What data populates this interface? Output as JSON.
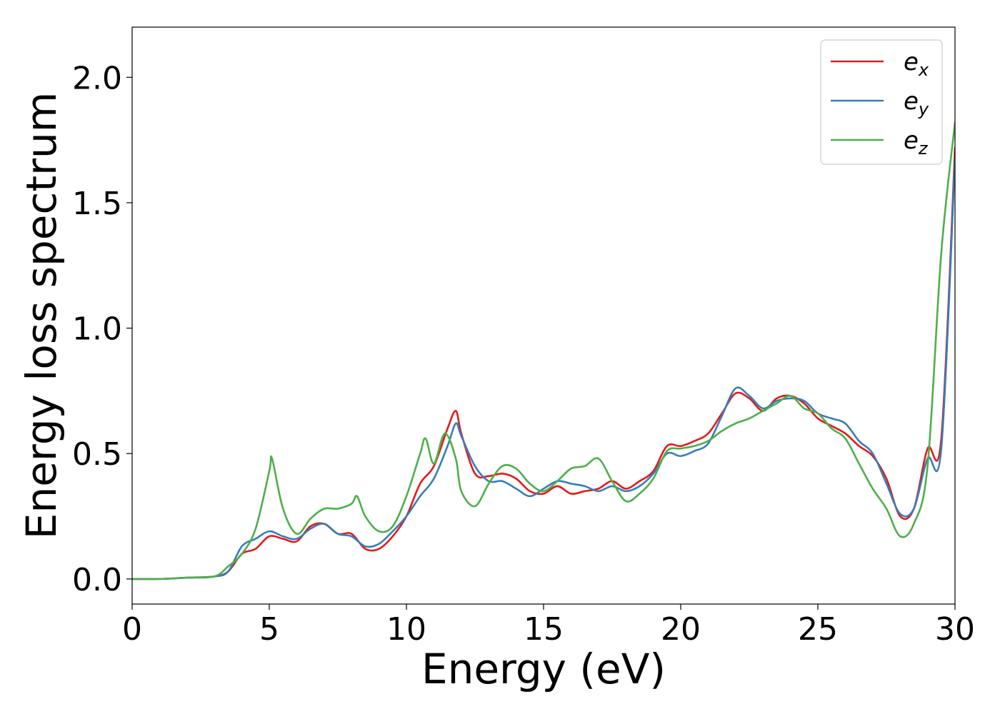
{
  "chart_data": {
    "type": "line",
    "xlabel": "Energy (eV)",
    "ylabel": "Energy loss spectrum",
    "xlim": [
      0,
      30
    ],
    "ylim": [
      -0.1,
      2.2
    ],
    "xticks": [
      "0",
      "5",
      "10",
      "15",
      "20",
      "25",
      "30"
    ],
    "yticks": [
      "0.0",
      "0.5",
      "1.0",
      "1.5",
      "2.0"
    ],
    "grid": false,
    "legend_position": "top-right",
    "series": [
      {
        "name": "e",
        "subscript": "x",
        "color": "#e41a1c",
        "x": [
          0,
          1,
          2,
          3,
          3.5,
          4,
          4.5,
          5,
          5.5,
          6,
          6.5,
          7,
          7.5,
          8,
          8.5,
          9,
          9.5,
          10,
          10.5,
          11,
          11.5,
          11.8,
          12,
          12.5,
          13,
          13.5,
          14,
          14.5,
          15,
          15.5,
          16,
          16.5,
          17,
          17.5,
          18,
          18.5,
          19,
          19.5,
          20,
          20.5,
          21,
          21.5,
          22,
          22.5,
          23,
          23.5,
          24,
          24.5,
          25,
          25.5,
          26,
          26.5,
          27,
          27.5,
          28,
          28.5,
          29,
          29.5,
          30
        ],
        "y": [
          0,
          0,
          0.005,
          0.01,
          0.03,
          0.1,
          0.12,
          0.17,
          0.16,
          0.15,
          0.21,
          0.22,
          0.18,
          0.18,
          0.12,
          0.12,
          0.17,
          0.25,
          0.38,
          0.45,
          0.6,
          0.67,
          0.58,
          0.42,
          0.41,
          0.42,
          0.4,
          0.35,
          0.34,
          0.37,
          0.34,
          0.35,
          0.36,
          0.39,
          0.36,
          0.39,
          0.43,
          0.53,
          0.53,
          0.55,
          0.58,
          0.66,
          0.74,
          0.72,
          0.67,
          0.72,
          0.73,
          0.7,
          0.64,
          0.61,
          0.58,
          0.53,
          0.49,
          0.4,
          0.25,
          0.28,
          0.52,
          0.56,
          1.72
        ]
      },
      {
        "name": "e",
        "subscript": "y",
        "color": "#377eb8",
        "x": [
          0,
          1,
          2,
          3,
          3.5,
          4,
          4.5,
          5,
          5.5,
          6,
          6.5,
          7,
          7.5,
          8,
          8.5,
          9,
          9.5,
          10,
          10.5,
          11,
          11.5,
          11.8,
          12,
          12.5,
          13,
          13.5,
          14,
          14.5,
          15,
          15.5,
          16,
          16.5,
          17,
          17.5,
          18,
          18.5,
          19,
          19.5,
          20,
          20.5,
          21,
          21.5,
          22,
          22.5,
          23,
          23.5,
          24,
          24.5,
          25,
          25.5,
          26,
          26.5,
          27,
          27.5,
          28,
          28.5,
          29,
          29.5,
          30
        ],
        "y": [
          0,
          0,
          0.005,
          0.01,
          0.03,
          0.13,
          0.16,
          0.19,
          0.17,
          0.16,
          0.2,
          0.22,
          0.18,
          0.17,
          0.13,
          0.14,
          0.19,
          0.25,
          0.33,
          0.4,
          0.53,
          0.62,
          0.57,
          0.45,
          0.39,
          0.39,
          0.36,
          0.33,
          0.36,
          0.39,
          0.38,
          0.37,
          0.35,
          0.37,
          0.35,
          0.37,
          0.42,
          0.5,
          0.49,
          0.51,
          0.54,
          0.65,
          0.76,
          0.73,
          0.68,
          0.71,
          0.72,
          0.71,
          0.66,
          0.64,
          0.62,
          0.55,
          0.5,
          0.38,
          0.26,
          0.28,
          0.48,
          0.52,
          1.68
        ]
      },
      {
        "name": "e",
        "subscript": "z",
        "color": "#4daf4a",
        "x": [
          0,
          1,
          2,
          3,
          3.5,
          4,
          4.5,
          5,
          5.1,
          5.5,
          6,
          6.5,
          7,
          7.5,
          8,
          8.2,
          8.5,
          9,
          9.5,
          10,
          10.5,
          10.7,
          11,
          11.4,
          11.8,
          12,
          12.5,
          13,
          13.5,
          14,
          14.5,
          15,
          15.5,
          16,
          16.5,
          17,
          17.5,
          18,
          18.5,
          19,
          19.5,
          20,
          20.5,
          21,
          21.5,
          22,
          22.5,
          23,
          23.5,
          24,
          24.5,
          25,
          25.5,
          26,
          26.5,
          27,
          27.5,
          28,
          28.5,
          29,
          29.5,
          30
        ],
        "y": [
          0,
          0,
          0.005,
          0.01,
          0.05,
          0.1,
          0.2,
          0.43,
          0.48,
          0.28,
          0.18,
          0.24,
          0.28,
          0.28,
          0.3,
          0.33,
          0.25,
          0.19,
          0.21,
          0.33,
          0.5,
          0.56,
          0.46,
          0.58,
          0.48,
          0.35,
          0.29,
          0.38,
          0.45,
          0.44,
          0.38,
          0.35,
          0.39,
          0.44,
          0.45,
          0.48,
          0.39,
          0.31,
          0.34,
          0.4,
          0.51,
          0.52,
          0.53,
          0.55,
          0.59,
          0.62,
          0.64,
          0.67,
          0.7,
          0.73,
          0.68,
          0.66,
          0.6,
          0.56,
          0.46,
          0.36,
          0.28,
          0.17,
          0.22,
          0.45,
          1.3,
          1.82
        ]
      }
    ]
  }
}
